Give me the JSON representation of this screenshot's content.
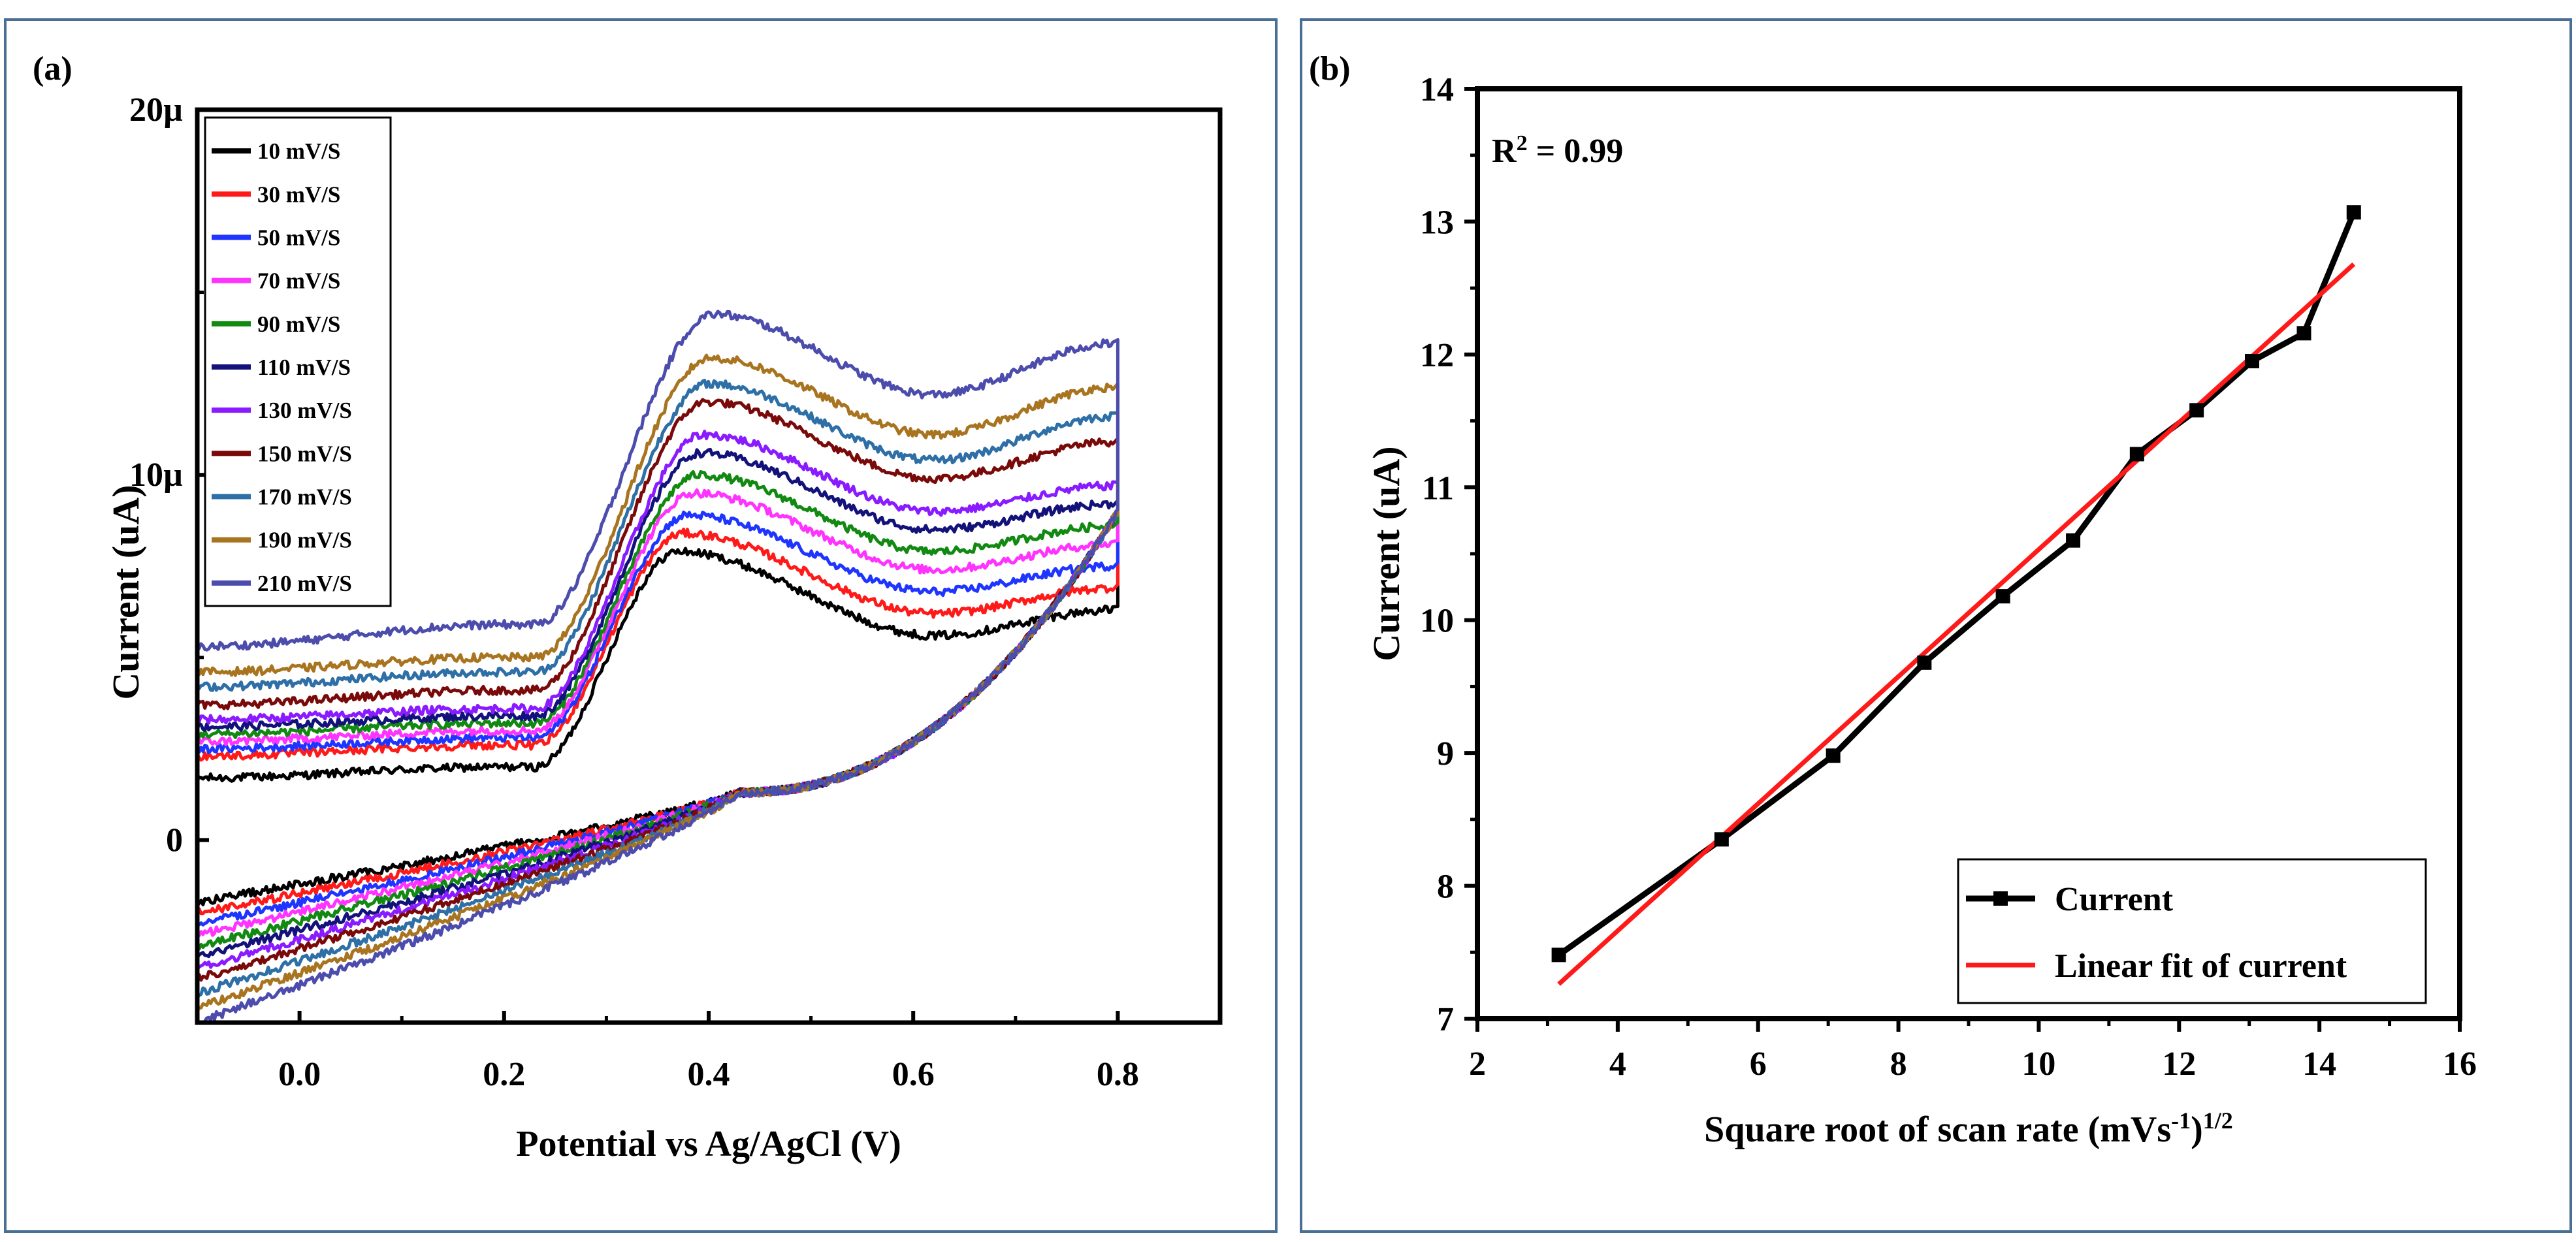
{
  "chart_data": [
    {
      "panel_label": "(a)",
      "type": "line",
      "title": "",
      "xlabel": "Potential vs Ag/AgCl (V)",
      "ylabel": "Current (uA)",
      "xlim": [
        -0.1,
        0.9
      ],
      "ylim": [
        -5,
        20
      ],
      "x_ticks": [
        {
          "v": 0.0,
          "label": "0.0"
        },
        {
          "v": 0.2,
          "label": "0.2"
        },
        {
          "v": 0.4,
          "label": "0.4"
        },
        {
          "v": 0.6,
          "label": "0.6"
        },
        {
          "v": 0.8,
          "label": "0.8"
        }
      ],
      "y_ticks": [
        {
          "v": 0,
          "label": "0"
        },
        {
          "v": 10,
          "label": "10µ"
        },
        {
          "v": 20,
          "label": "20µ"
        }
      ],
      "legend_position": "top-left",
      "series": [
        {
          "name": "10 mV/S",
          "color": "#000000",
          "fwd_start": 1.7,
          "plateau": 2.0,
          "peak": 7.9,
          "peak_v": 0.37,
          "dip": 5.6,
          "vertex": 6.3,
          "rev_start": -1.7
        },
        {
          "name": "30 mV/S",
          "color": "#ff1a1a",
          "fwd_start": 2.3,
          "plateau": 2.6,
          "peak": 8.4,
          "peak_v": 0.375,
          "dip": 6.2,
          "vertex": 6.9,
          "rev_start": -2.0
        },
        {
          "name": "50 mV/S",
          "color": "#1f35ff",
          "fwd_start": 2.5,
          "plateau": 2.8,
          "peak": 8.9,
          "peak_v": 0.38,
          "dip": 6.8,
          "vertex": 7.5,
          "rev_start": -2.3
        },
        {
          "name": "70 mV/S",
          "color": "#ff33ff",
          "fwd_start": 2.7,
          "plateau": 3.0,
          "peak": 9.5,
          "peak_v": 0.385,
          "dip": 7.4,
          "vertex": 8.1,
          "rev_start": -2.6
        },
        {
          "name": "90 mV/S",
          "color": "#128a12",
          "fwd_start": 2.9,
          "plateau": 3.2,
          "peak": 10.0,
          "peak_v": 0.39,
          "dip": 7.9,
          "vertex": 8.6,
          "rev_start": -2.9
        },
        {
          "name": "110 mV/S",
          "color": "#12127a",
          "fwd_start": 3.1,
          "plateau": 3.4,
          "peak": 10.6,
          "peak_v": 0.392,
          "dip": 8.5,
          "vertex": 9.2,
          "rev_start": -3.2
        },
        {
          "name": "130 mV/S",
          "color": "#8a1aff",
          "fwd_start": 3.3,
          "plateau": 3.6,
          "peak": 11.1,
          "peak_v": 0.395,
          "dip": 9.0,
          "vertex": 9.7,
          "rev_start": -3.5
        },
        {
          "name": "150 mV/S",
          "color": "#7a0a0a",
          "fwd_start": 3.7,
          "plateau": 4.1,
          "peak": 12.0,
          "peak_v": 0.398,
          "dip": 9.9,
          "vertex": 10.9,
          "rev_start": -3.8
        },
        {
          "name": "170 mV/S",
          "color": "#2d6fa6",
          "fwd_start": 4.2,
          "plateau": 4.6,
          "peak": 12.5,
          "peak_v": 0.4,
          "dip": 10.4,
          "vertex": 11.6,
          "rev_start": -4.2
        },
        {
          "name": "190 mV/S",
          "color": "#a87420",
          "fwd_start": 4.6,
          "plateau": 5.0,
          "peak": 13.2,
          "peak_v": 0.402,
          "dip": 11.1,
          "vertex": 12.4,
          "rev_start": -4.6
        },
        {
          "name": "210 mV/S",
          "color": "#4c4cad",
          "fwd_start": 5.3,
          "plateau": 5.9,
          "peak": 14.4,
          "peak_v": 0.405,
          "dip": 12.2,
          "vertex": 13.6,
          "rev_start": -5.0
        }
      ]
    },
    {
      "panel_label": "(b)",
      "type": "line",
      "title": "",
      "xlabel_main": "Square root of scan rate (mVs",
      "xlabel_exp1": "-1",
      "xlabel_close": ")",
      "xlabel_exp2": "1/2",
      "ylabel": "Current (uA)",
      "xlim": [
        2,
        16
      ],
      "ylim": [
        7,
        14
      ],
      "x_ticks": [
        {
          "v": 2,
          "label": "2"
        },
        {
          "v": 4,
          "label": "4"
        },
        {
          "v": 6,
          "label": "6"
        },
        {
          "v": 8,
          "label": "8"
        },
        {
          "v": 10,
          "label": "10"
        },
        {
          "v": 12,
          "label": "12"
        },
        {
          "v": 14,
          "label": "14"
        },
        {
          "v": 16,
          "label": "16"
        }
      ],
      "y_ticks": [
        {
          "v": 7,
          "label": "7"
        },
        {
          "v": 8,
          "label": "8"
        },
        {
          "v": 9,
          "label": "9"
        },
        {
          "v": 10,
          "label": "10"
        },
        {
          "v": 11,
          "label": "11"
        },
        {
          "v": 12,
          "label": "12"
        },
        {
          "v": 13,
          "label": "13"
        },
        {
          "v": 14,
          "label": "14"
        }
      ],
      "annotation": {
        "r_label": "R",
        "r_sup": "2",
        "r_value": " = 0.99"
      },
      "legend_position": "bottom-right",
      "series": [
        {
          "name": "Current",
          "color": "#000000",
          "marker": "square",
          "x": [
            3.16,
            5.48,
            7.07,
            8.37,
            9.49,
            10.49,
            11.4,
            12.25,
            13.04,
            13.78,
            14.49
          ],
          "y": [
            7.48,
            8.35,
            8.98,
            9.68,
            10.18,
            10.6,
            11.25,
            11.58,
            11.95,
            12.16,
            13.07
          ]
        },
        {
          "name": "Linear fit of current",
          "color": "#ff1a1a",
          "marker": "none",
          "x": [
            3.16,
            14.49
          ],
          "y": [
            7.26,
            12.68
          ]
        }
      ]
    }
  ]
}
